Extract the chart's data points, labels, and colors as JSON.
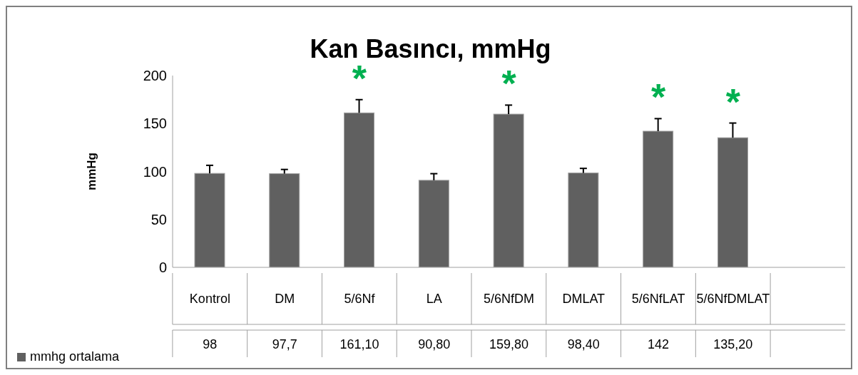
{
  "chart_data": {
    "type": "bar",
    "title": "Kan Basıncı, mmHg",
    "ylabel": "mmHg",
    "categories": [
      "Kontrol",
      "DM",
      "5/6Nf",
      "LA",
      "5/6NfDM",
      "DMLAT",
      "5/6NfLAT",
      "5/6NfDMLAT",
      null
    ],
    "series": [
      {
        "name": "mmhg ortalama",
        "color": "#606060",
        "values": [
          98,
          97.7,
          161.1,
          90.8,
          159.8,
          98.4,
          142,
          135.2,
          null
        ],
        "value_labels": [
          "98",
          "97,7",
          "161,10",
          "90,80",
          "159,80",
          "98,40",
          "142",
          "135,20",
          null
        ],
        "errors": [
          [
            98,
            106.4
          ],
          [
            97.7,
            102.1
          ],
          [
            161.1,
            174.9
          ],
          [
            90.8,
            97.7
          ],
          [
            159.8,
            169.2
          ],
          [
            98.4,
            103.2
          ],
          [
            142,
            155.1
          ],
          [
            135.2,
            150.5
          ],
          null
        ]
      }
    ],
    "ylim": [
      0,
      200
    ],
    "yticks": [
      0,
      50,
      100,
      150,
      200
    ],
    "grid": false,
    "legend": "bottom left",
    "annotations": [
      "*",
      "*",
      "*",
      "*"
    ]
  }
}
